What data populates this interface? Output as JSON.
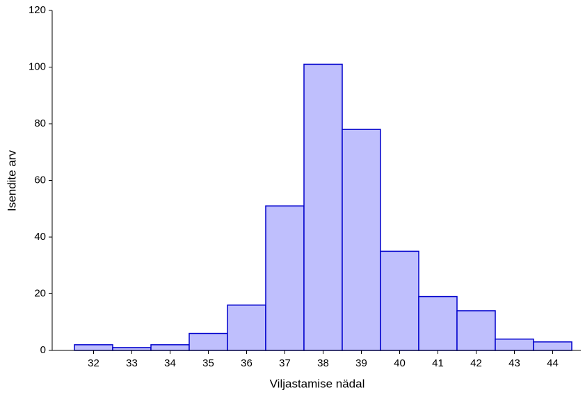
{
  "chart_data": {
    "type": "bar",
    "x_label": "Viljastamise nädal",
    "y_label": "Isendite arv",
    "categories": [
      "32",
      "33",
      "34",
      "35",
      "36",
      "37",
      "38",
      "39",
      "40",
      "41",
      "42",
      "43",
      "44"
    ],
    "values": [
      2,
      1,
      2,
      6,
      16,
      51,
      101,
      78,
      35,
      19,
      14,
      4,
      3
    ],
    "color": "#bfbffd",
    "edgecolor": "#0000cc",
    "ylim": [
      0,
      120
    ],
    "yticks": [
      0,
      20,
      40,
      60,
      80,
      100,
      120
    ]
  }
}
